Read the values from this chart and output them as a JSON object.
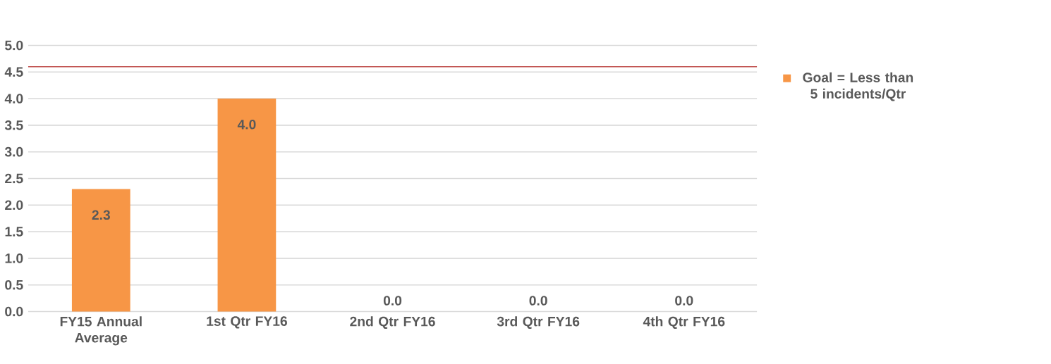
{
  "chart_data": {
    "type": "bar",
    "categories": [
      "FY15 Annual Average",
      "1st Qtr FY16",
      "2nd Qtr FY16",
      "3rd Qtr FY16",
      "4th Qtr FY16"
    ],
    "series": [
      {
        "name": "Goal = Less than 5 incidents/Qtr",
        "color": "#f79646",
        "values": [
          2.3,
          4.0,
          0,
          0,
          0
        ],
        "value_labels": [
          "2.3",
          "4.0",
          "0.0",
          "0.0",
          "0.0"
        ]
      }
    ],
    "ylim": [
      0,
      5
    ],
    "yticks": [
      {
        "value": 0,
        "label": "0.0"
      },
      {
        "value": 0.5,
        "label": "0.5"
      },
      {
        "value": 1,
        "label": "1.0"
      },
      {
        "value": 1.5,
        "label": "1.5"
      },
      {
        "value": 2,
        "label": "2.0"
      },
      {
        "value": 2.5,
        "label": "2.5"
      },
      {
        "value": 3,
        "label": "3.0"
      },
      {
        "value": 3.5,
        "label": "3.5"
      },
      {
        "value": 4,
        "label": "4.0"
      },
      {
        "value": 4.5,
        "label": "4.5"
      },
      {
        "value": 5,
        "label": "5.0"
      }
    ],
    "grid": "y",
    "legend": "right",
    "ref_lines": [
      {
        "axis": "y",
        "value": 4.6,
        "color": "#c0504d"
      }
    ]
  }
}
